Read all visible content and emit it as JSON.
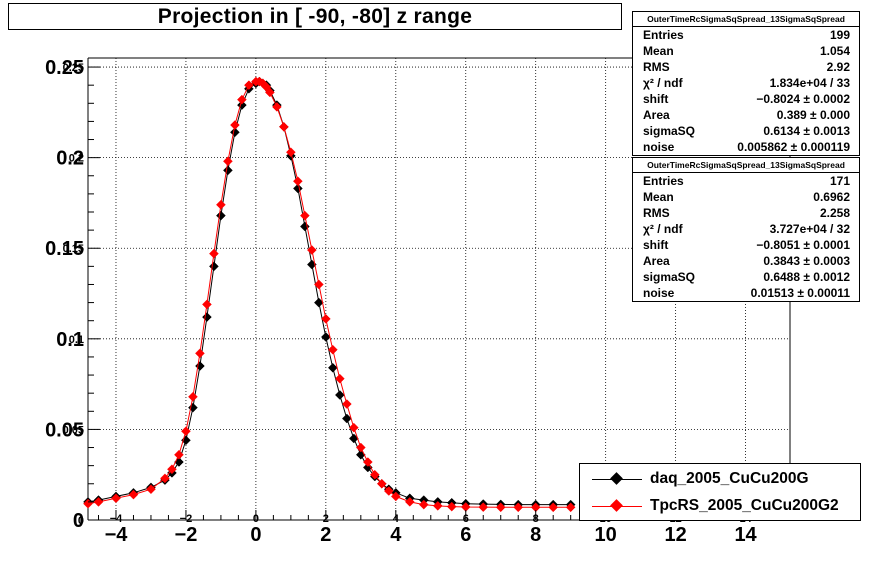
{
  "title": "Projection in [ -90, -80] z range",
  "stats": [
    {
      "header": "OuterTimeRcSigmaSqSpread_13SigmaSqSpread",
      "rows": [
        {
          "label": "Entries",
          "value": "199"
        },
        {
          "label": "Mean",
          "value": "1.054"
        },
        {
          "label": "RMS",
          "value": "2.92"
        },
        {
          "label": "χ² / ndf",
          "value": "1.834e+04 / 33"
        },
        {
          "label": "shift",
          "value": "−0.8024 ± 0.0002"
        },
        {
          "label": "Area",
          "value": "0.389 ± 0.000"
        },
        {
          "label": "sigmaSQ",
          "value": "0.6134 ± 0.0013"
        },
        {
          "label": "noise",
          "value": "0.005862 ± 0.000119"
        }
      ]
    },
    {
      "header": "OuterTimeRcSigmaSqSpread_13SigmaSqSpread",
      "rows": [
        {
          "label": "Entries",
          "value": "171"
        },
        {
          "label": "Mean",
          "value": "0.6962"
        },
        {
          "label": "RMS",
          "value": "2.258"
        },
        {
          "label": "χ² / ndf",
          "value": "3.727e+04 / 32"
        },
        {
          "label": "shift",
          "value": "−0.8051 ± 0.0001"
        },
        {
          "label": "Area",
          "value": "0.3843 ± 0.0003"
        },
        {
          "label": "sigmaSQ",
          "value": "0.6488 ± 0.0012"
        },
        {
          "label": "noise",
          "value": "0.01513 ± 0.00011"
        }
      ]
    }
  ],
  "legend": [
    {
      "name": "daq_2005_CuCu200G",
      "color": "#000000"
    },
    {
      "name": "TpcRS_2005_CuCu200G2",
      "color": "#ff0000"
    }
  ],
  "chart_data": {
    "type": "scatter",
    "title": "Projection in [ -90, -80] z range",
    "xlabel": "",
    "ylabel": "",
    "xlim": [
      -4.8,
      17.3
    ],
    "ylim": [
      0,
      0.255
    ],
    "x_ticks_outer": [
      "−4",
      "−2",
      "0",
      "2",
      "4",
      "6",
      "8",
      "10",
      "12",
      "14"
    ],
    "x_ticks_inner": [
      "−4",
      "−2",
      "0",
      "2",
      "4",
      "6",
      "8",
      "10",
      "12",
      "14"
    ],
    "y_ticks_outer": [
      "0",
      "0.05",
      "0.1",
      "0.15",
      "0.2",
      "0.25"
    ],
    "y_ticks_inner": [
      "0",
      "0.05",
      "0.1",
      "0.15",
      "0.2",
      "0.25"
    ],
    "grid": true,
    "series": [
      {
        "name": "daq_2005_CuCu200G",
        "color": "#000000",
        "x": [
          -4.8,
          -4.5,
          -4.0,
          -3.5,
          -3.0,
          -2.6,
          -2.4,
          -2.2,
          -2.0,
          -1.8,
          -1.6,
          -1.4,
          -1.2,
          -1.0,
          -0.8,
          -0.6,
          -0.4,
          -0.2,
          0.0,
          0.1,
          0.2,
          0.3,
          0.4,
          0.6,
          0.8,
          1.0,
          1.2,
          1.4,
          1.6,
          1.8,
          2.0,
          2.2,
          2.4,
          2.6,
          2.8,
          3.0,
          3.2,
          3.4,
          3.6,
          3.8,
          4.0,
          4.4,
          4.8,
          5.2,
          5.6,
          6.0,
          6.5,
          7.0,
          7.5,
          8.0,
          8.5,
          9.0
        ],
        "y": [
          0.01,
          0.011,
          0.013,
          0.015,
          0.018,
          0.022,
          0.026,
          0.032,
          0.044,
          0.062,
          0.085,
          0.112,
          0.14,
          0.168,
          0.193,
          0.214,
          0.229,
          0.238,
          0.241,
          0.242,
          0.241,
          0.24,
          0.237,
          0.229,
          0.217,
          0.201,
          0.183,
          0.162,
          0.141,
          0.12,
          0.101,
          0.084,
          0.069,
          0.056,
          0.045,
          0.036,
          0.029,
          0.024,
          0.02,
          0.017,
          0.015,
          0.012,
          0.011,
          0.01,
          0.0095,
          0.009,
          0.0088,
          0.0086,
          0.0085,
          0.0085,
          0.0085,
          0.0085
        ]
      },
      {
        "name": "TpcRS_2005_CuCu200G2",
        "color": "#ff0000",
        "x": [
          -4.8,
          -4.5,
          -4.0,
          -3.5,
          -3.0,
          -2.6,
          -2.4,
          -2.2,
          -2.0,
          -1.8,
          -1.6,
          -1.4,
          -1.2,
          -1.0,
          -0.8,
          -0.6,
          -0.4,
          -0.2,
          0.0,
          0.1,
          0.2,
          0.3,
          0.4,
          0.6,
          0.8,
          1.0,
          1.2,
          1.4,
          1.6,
          1.8,
          2.0,
          2.2,
          2.4,
          2.6,
          2.8,
          3.0,
          3.2,
          3.4,
          3.6,
          3.8,
          4.0,
          4.4,
          4.8,
          5.2,
          5.6,
          6.0,
          6.5,
          7.0,
          7.5,
          8.0,
          8.5,
          9.0
        ],
        "y": [
          0.009,
          0.01,
          0.012,
          0.014,
          0.017,
          0.023,
          0.028,
          0.036,
          0.049,
          0.068,
          0.092,
          0.119,
          0.147,
          0.174,
          0.198,
          0.218,
          0.232,
          0.24,
          0.242,
          0.242,
          0.241,
          0.239,
          0.236,
          0.228,
          0.217,
          0.203,
          0.187,
          0.168,
          0.149,
          0.13,
          0.111,
          0.094,
          0.078,
          0.064,
          0.051,
          0.04,
          0.032,
          0.025,
          0.02,
          0.016,
          0.013,
          0.01,
          0.0085,
          0.0078,
          0.0074,
          0.0072,
          0.0071,
          0.007,
          0.007,
          0.007,
          0.007,
          0.007
        ]
      }
    ]
  }
}
